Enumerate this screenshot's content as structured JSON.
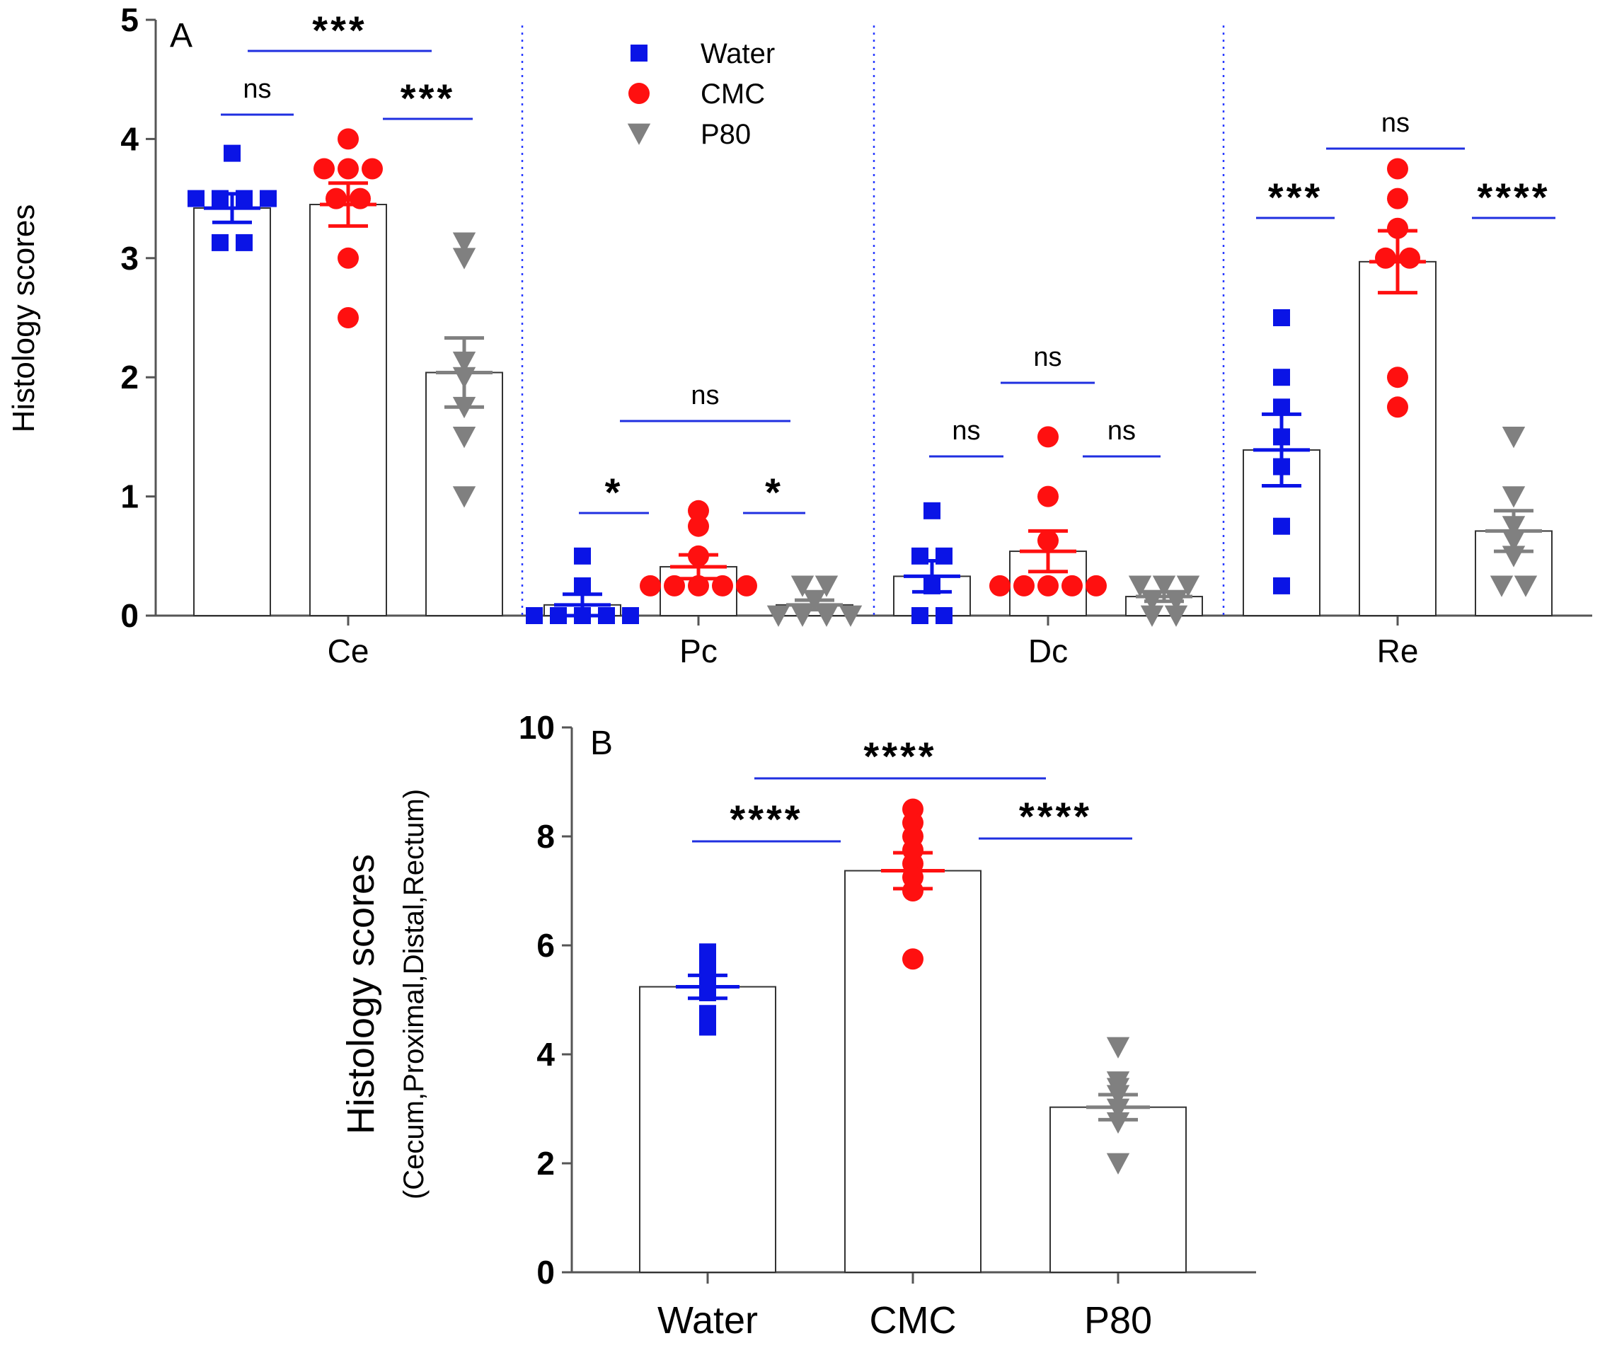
{
  "colors": {
    "Water": "#0a14e6",
    "CMC": "#ff1010",
    "P80": "#808080",
    "sig_line": "#1f2fe0"
  },
  "legend": [
    {
      "name": "Water",
      "marker": "square"
    },
    {
      "name": "CMC",
      "marker": "circle"
    },
    {
      "name": "P80",
      "marker": "triangle-down"
    }
  ],
  "chart_data": [
    {
      "panel": "A",
      "type": "bar",
      "ylabel": "Histology scores",
      "ylim": [
        0,
        5
      ],
      "yticks": [
        0,
        1,
        2,
        3,
        4,
        5
      ],
      "categories": [
        "Ce",
        "Pc",
        "Dc",
        "Re"
      ],
      "groups": [
        "Water",
        "CMC",
        "P80"
      ],
      "separators": "dotted-vertical",
      "values": {
        "Ce": {
          "Water": {
            "mean": 3.42,
            "sem": 0.12,
            "points": [
              3.88,
              3.5,
              3.5,
              3.5,
              3.5,
              3.13,
              3.13
            ]
          },
          "CMC": {
            "mean": 3.45,
            "sem": 0.18,
            "points": [
              4.0,
              3.75,
              3.75,
              3.75,
              3.5,
              3.5,
              3.0,
              2.5
            ]
          },
          "P80": {
            "mean": 2.04,
            "sem": 0.29,
            "points": [
              3.13,
              3.0,
              2.13,
              2.0,
              1.75,
              1.5,
              1.0
            ]
          }
        },
        "Pc": {
          "Water": {
            "mean": 0.09,
            "sem": 0.09,
            "points": [
              0.5,
              0.25,
              0.0,
              0.0,
              0.0,
              0.0,
              0.0
            ]
          },
          "CMC": {
            "mean": 0.41,
            "sem": 0.1,
            "points": [
              0.88,
              0.75,
              0.5,
              0.25,
              0.25,
              0.25,
              0.25,
              0.25
            ]
          },
          "P80": {
            "mean": 0.09,
            "sem": 0.04,
            "points": [
              0.25,
              0.25,
              0.13,
              0.0,
              0.0,
              0.0,
              0.0
            ]
          }
        },
        "Dc": {
          "Water": {
            "mean": 0.33,
            "sem": 0.13,
            "points": [
              0.88,
              0.5,
              0.5,
              0.25,
              0.0,
              0.0
            ]
          },
          "CMC": {
            "mean": 0.54,
            "sem": 0.17,
            "points": [
              1.5,
              1.0,
              0.63,
              0.25,
              0.25,
              0.25,
              0.25,
              0.25
            ]
          },
          "P80": {
            "mean": 0.16,
            "sem": 0.04,
            "points": [
              0.25,
              0.25,
              0.25,
              0.13,
              0.13,
              0.0,
              0.0
            ]
          }
        },
        "Re": {
          "Water": {
            "mean": 1.39,
            "sem": 0.3,
            "points": [
              2.5,
              2.0,
              1.75,
              1.5,
              1.25,
              0.75,
              0.25
            ]
          },
          "CMC": {
            "mean": 2.97,
            "sem": 0.26,
            "points": [
              3.75,
              3.5,
              3.25,
              3.0,
              3.0,
              2.0,
              1.75
            ]
          },
          "P80": {
            "mean": 0.71,
            "sem": 0.17,
            "points": [
              1.5,
              1.0,
              0.75,
              0.63,
              0.5,
              0.25,
              0.25
            ]
          }
        }
      },
      "significance": [
        {
          "category": "Ce",
          "from": "Water",
          "to": "CMC",
          "label": "ns"
        },
        {
          "category": "Ce",
          "from": "CMC",
          "to": "P80",
          "label": "***"
        },
        {
          "category": "Ce",
          "from": "Water",
          "to": "P80",
          "label": "***"
        },
        {
          "category": "Pc",
          "from": "Water",
          "to": "CMC",
          "label": "*"
        },
        {
          "category": "Pc",
          "from": "CMC",
          "to": "P80",
          "label": "*"
        },
        {
          "category": "Pc",
          "from": "Water",
          "to": "P80",
          "label": "ns"
        },
        {
          "category": "Dc",
          "from": "Water",
          "to": "CMC",
          "label": "ns"
        },
        {
          "category": "Dc",
          "from": "CMC",
          "to": "P80",
          "label": "ns"
        },
        {
          "category": "Dc",
          "from": "Water",
          "to": "P80",
          "label": "ns"
        },
        {
          "category": "Re",
          "from": "Water",
          "to": "CMC",
          "label": "***"
        },
        {
          "category": "Re",
          "from": "CMC",
          "to": "P80",
          "label": "****"
        },
        {
          "category": "Re",
          "from": "Water",
          "to": "P80",
          "label": "ns"
        }
      ]
    },
    {
      "panel": "B",
      "type": "bar",
      "ylabel": "Histology scores",
      "ylabel_sub": "(Cecum,Proximal,Distal,Rectum)",
      "ylim": [
        0,
        10
      ],
      "yticks": [
        0,
        2,
        4,
        6,
        8,
        10
      ],
      "categories": [
        "Water",
        "CMC",
        "P80"
      ],
      "values": {
        "Water": {
          "mean": 5.24,
          "sem": 0.21,
          "points": [
            5.88,
            5.75,
            5.63,
            5.38,
            5.13,
            4.75,
            4.5
          ]
        },
        "CMC": {
          "mean": 7.37,
          "sem": 0.33,
          "points": [
            8.5,
            8.25,
            8.0,
            7.75,
            7.5,
            7.25,
            7.0,
            5.75
          ]
        },
        "P80": {
          "mean": 3.03,
          "sem": 0.23,
          "points": [
            4.13,
            3.5,
            3.38,
            3.25,
            3.0,
            2.75,
            2.0
          ]
        }
      },
      "significance": [
        {
          "from": "Water",
          "to": "CMC",
          "label": "****"
        },
        {
          "from": "CMC",
          "to": "P80",
          "label": "****"
        },
        {
          "from": "Water",
          "to": "P80",
          "label": "****"
        }
      ]
    }
  ]
}
